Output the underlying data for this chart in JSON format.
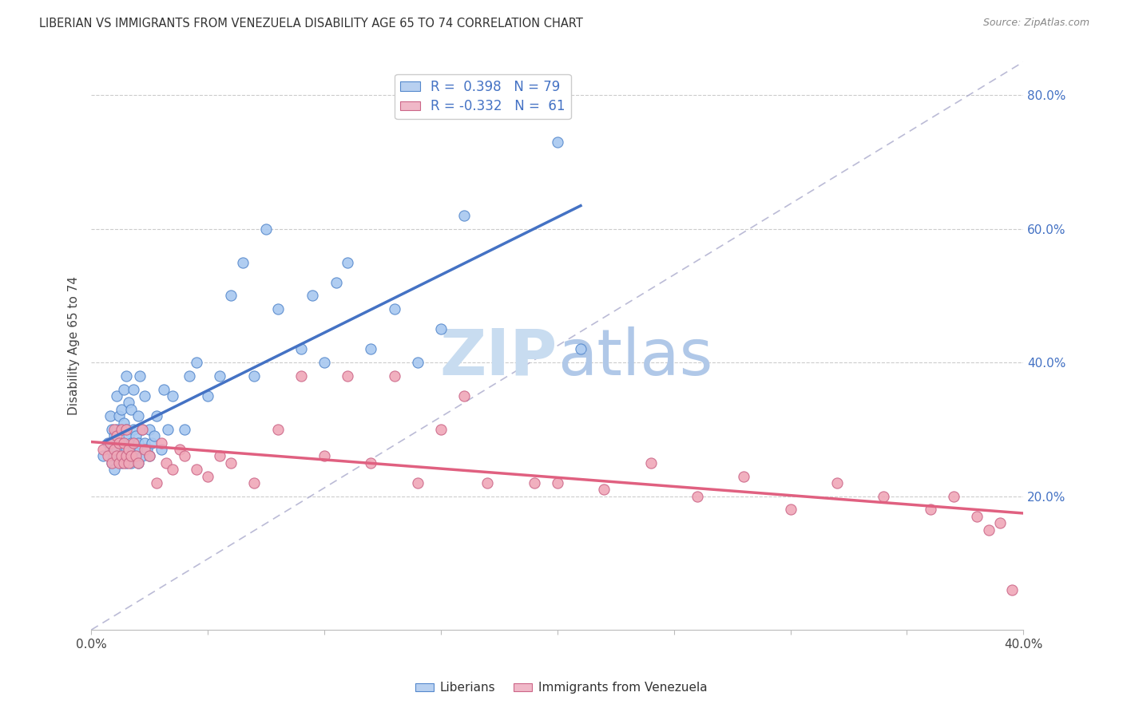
{
  "title": "LIBERIAN VS IMMIGRANTS FROM VENEZUELA DISABILITY AGE 65 TO 74 CORRELATION CHART",
  "source": "Source: ZipAtlas.com",
  "ylabel": "Disability Age 65 to 74",
  "xlim": [
    0.0,
    0.4
  ],
  "ylim": [
    0.0,
    0.85
  ],
  "xticks": [
    0.0,
    0.05,
    0.1,
    0.15,
    0.2,
    0.25,
    0.3,
    0.35,
    0.4
  ],
  "xticklabels": [
    "0.0%",
    "",
    "",
    "",
    "",
    "",
    "",
    "",
    "40.0%"
  ],
  "yticks_right": [
    0.2,
    0.4,
    0.6,
    0.8
  ],
  "ytick_right_labels": [
    "20.0%",
    "40.0%",
    "60.0%",
    "80.0%"
  ],
  "blue_color": "#a8c8f0",
  "pink_color": "#f0a8b8",
  "blue_edge_color": "#5588cc",
  "pink_edge_color": "#cc6688",
  "blue_line_color": "#4472c4",
  "pink_line_color": "#e06080",
  "ref_line_color": "#aaaacc",
  "R_blue": 0.398,
  "N_blue": 79,
  "R_pink": -0.332,
  "N_pink": 61,
  "blue_legend_fill": "#b8d0f0",
  "pink_legend_fill": "#f0b8c8",
  "background_color": "#ffffff",
  "grid_color": "#cccccc",
  "watermark_zip": "ZIP",
  "watermark_atlas": "atlas",
  "watermark_color_zip": "#c8dcf0",
  "watermark_color_atlas": "#b0c8e8",
  "figsize": [
    14.06,
    8.92
  ],
  "dpi": 100,
  "blue_scatter_x": [
    0.005,
    0.007,
    0.008,
    0.008,
    0.009,
    0.009,
    0.01,
    0.01,
    0.01,
    0.011,
    0.011,
    0.011,
    0.012,
    0.012,
    0.012,
    0.013,
    0.013,
    0.013,
    0.013,
    0.014,
    0.014,
    0.014,
    0.014,
    0.015,
    0.015,
    0.015,
    0.015,
    0.016,
    0.016,
    0.016,
    0.017,
    0.017,
    0.017,
    0.018,
    0.018,
    0.018,
    0.019,
    0.019,
    0.02,
    0.02,
    0.02,
    0.021,
    0.021,
    0.022,
    0.022,
    0.023,
    0.023,
    0.024,
    0.025,
    0.025,
    0.026,
    0.027,
    0.028,
    0.03,
    0.031,
    0.033,
    0.035,
    0.04,
    0.042,
    0.045,
    0.05,
    0.055,
    0.06,
    0.065,
    0.07,
    0.075,
    0.08,
    0.09,
    0.095,
    0.1,
    0.105,
    0.11,
    0.12,
    0.13,
    0.14,
    0.15,
    0.16,
    0.2,
    0.21
  ],
  "blue_scatter_y": [
    0.26,
    0.28,
    0.27,
    0.32,
    0.25,
    0.3,
    0.24,
    0.26,
    0.29,
    0.27,
    0.3,
    0.35,
    0.26,
    0.28,
    0.32,
    0.25,
    0.27,
    0.3,
    0.33,
    0.26,
    0.28,
    0.31,
    0.36,
    0.25,
    0.27,
    0.3,
    0.38,
    0.26,
    0.29,
    0.34,
    0.25,
    0.28,
    0.33,
    0.27,
    0.3,
    0.36,
    0.26,
    0.29,
    0.25,
    0.28,
    0.32,
    0.27,
    0.38,
    0.26,
    0.3,
    0.28,
    0.35,
    0.27,
    0.26,
    0.3,
    0.28,
    0.29,
    0.32,
    0.27,
    0.36,
    0.3,
    0.35,
    0.3,
    0.38,
    0.4,
    0.35,
    0.38,
    0.5,
    0.55,
    0.38,
    0.6,
    0.48,
    0.42,
    0.5,
    0.4,
    0.52,
    0.55,
    0.42,
    0.48,
    0.4,
    0.45,
    0.62,
    0.73,
    0.42
  ],
  "pink_scatter_x": [
    0.005,
    0.007,
    0.008,
    0.009,
    0.01,
    0.01,
    0.011,
    0.011,
    0.012,
    0.012,
    0.013,
    0.013,
    0.014,
    0.014,
    0.015,
    0.015,
    0.016,
    0.016,
    0.017,
    0.018,
    0.019,
    0.02,
    0.022,
    0.023,
    0.025,
    0.028,
    0.03,
    0.032,
    0.035,
    0.038,
    0.04,
    0.045,
    0.05,
    0.055,
    0.06,
    0.07,
    0.08,
    0.09,
    0.1,
    0.11,
    0.12,
    0.13,
    0.14,
    0.15,
    0.16,
    0.17,
    0.19,
    0.2,
    0.22,
    0.24,
    0.26,
    0.28,
    0.3,
    0.32,
    0.34,
    0.36,
    0.37,
    0.38,
    0.385,
    0.39,
    0.395
  ],
  "pink_scatter_y": [
    0.27,
    0.26,
    0.28,
    0.25,
    0.27,
    0.3,
    0.26,
    0.29,
    0.25,
    0.28,
    0.26,
    0.3,
    0.25,
    0.28,
    0.26,
    0.3,
    0.25,
    0.27,
    0.26,
    0.28,
    0.26,
    0.25,
    0.3,
    0.27,
    0.26,
    0.22,
    0.28,
    0.25,
    0.24,
    0.27,
    0.26,
    0.24,
    0.23,
    0.26,
    0.25,
    0.22,
    0.3,
    0.38,
    0.26,
    0.38,
    0.25,
    0.38,
    0.22,
    0.3,
    0.35,
    0.22,
    0.22,
    0.22,
    0.21,
    0.25,
    0.2,
    0.23,
    0.18,
    0.22,
    0.2,
    0.18,
    0.2,
    0.17,
    0.15,
    0.16,
    0.06
  ]
}
